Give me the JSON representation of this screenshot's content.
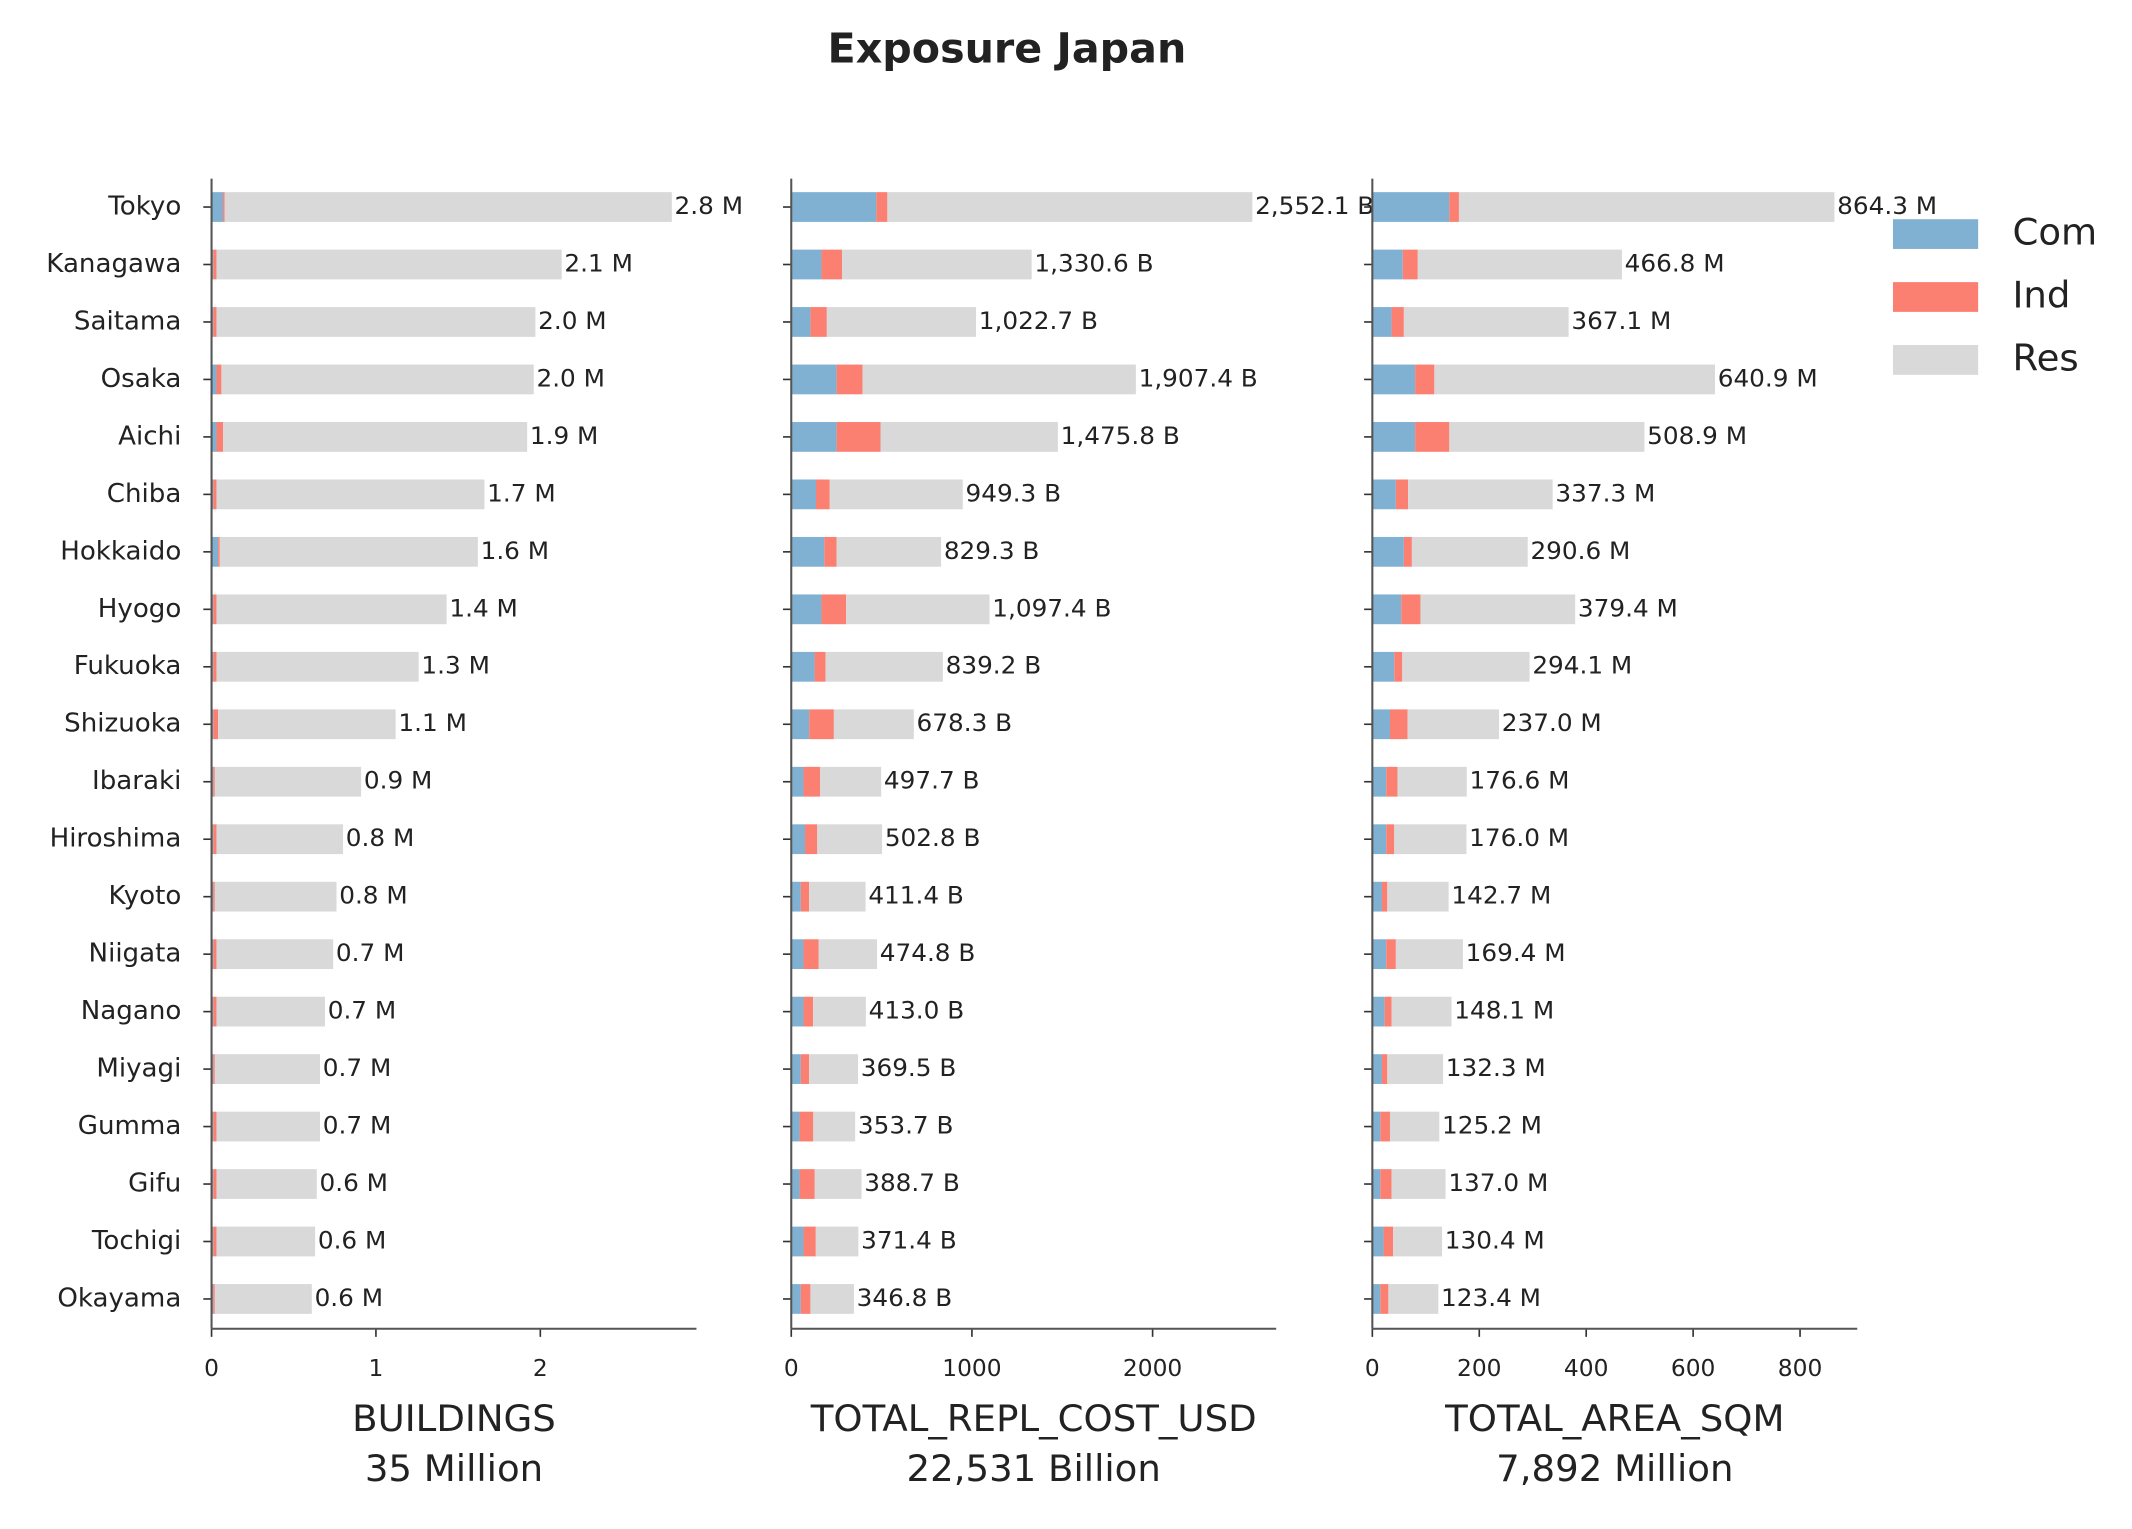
{
  "chart_data": {
    "type": "bar",
    "orientation": "horizontal",
    "stacked": true,
    "title": "Exposure Japan",
    "categories": [
      "Tokyo",
      "Kanagawa",
      "Saitama",
      "Osaka",
      "Aichi",
      "Chiba",
      "Hokkaido",
      "Hyogo",
      "Fukuoka",
      "Shizuoka",
      "Ibaraki",
      "Hiroshima",
      "Kyoto",
      "Niigata",
      "Nagano",
      "Miyagi",
      "Gumma",
      "Gifu",
      "Tochigi",
      "Okayama"
    ],
    "series": [
      {
        "name": "Com",
        "color": "#80b1d3"
      },
      {
        "name": "Ind",
        "color": "#fb8072"
      },
      {
        "name": "Res",
        "color": "#d9d9d9"
      }
    ],
    "legend": "upper right outside",
    "panels": [
      {
        "xlabel": "BUILDINGS",
        "xlabel_total": "35 Million",
        "xlim": [
          0,
          2.95
        ],
        "xticks": [
          0,
          1,
          2
        ],
        "values": [
          [
            0.07,
            0.01,
            0.01,
            0.03,
            0.03,
            0.01,
            0.04,
            0.01,
            0.01,
            0.01,
            0.01,
            0.01,
            0.01,
            0.01,
            0.01,
            0.01,
            0.01,
            0.01,
            0.01,
            0.01
          ],
          [
            0.01,
            0.02,
            0.02,
            0.03,
            0.04,
            0.02,
            0.01,
            0.02,
            0.02,
            0.03,
            0.01,
            0.02,
            0.01,
            0.02,
            0.02,
            0.01,
            0.02,
            0.02,
            0.02,
            0.01
          ],
          [
            2.72,
            2.1,
            1.94,
            1.9,
            1.85,
            1.63,
            1.57,
            1.4,
            1.23,
            1.08,
            0.89,
            0.77,
            0.74,
            0.71,
            0.66,
            0.64,
            0.63,
            0.61,
            0.6,
            0.59
          ]
        ],
        "value_labels": [
          "2.8 M",
          "2.1 M",
          "2.0 M",
          "2.0 M",
          "1.9 M",
          "1.7 M",
          "1.6 M",
          "1.4 M",
          "1.3 M",
          "1.1 M",
          "0.9 M",
          "0.8 M",
          "0.8 M",
          "0.7 M",
          "0.7 M",
          "0.7 M",
          "0.7 M",
          "0.6 M",
          "0.6 M",
          "0.6 M"
        ]
      },
      {
        "xlabel": "TOTAL_REPL_COST_USD",
        "xlabel_total": "22,531 Billion",
        "xlim": [
          0,
          2684
        ],
        "xticks": [
          0,
          1000,
          2000
        ],
        "values": [
          [
            471,
            167,
            106,
            251,
            251,
            137,
            183,
            167,
            129,
            99,
            68,
            76,
            53,
            68,
            68,
            53,
            46,
            46,
            68,
            53
          ],
          [
            61,
            114,
            91,
            144,
            243,
            76,
            68,
            137,
            61,
            137,
            91,
            68,
            46,
            84,
            53,
            46,
            76,
            84,
            68,
            53
          ],
          [
            2020.1,
            1049.6,
            825.7,
            1512.4,
            981.8,
            736.3,
            578.3,
            793.4,
            649.2,
            442.3,
            338.7,
            358.8,
            312.4,
            322.8,
            292.0,
            270.5,
            231.7,
            258.7,
            235.4,
            240.8
          ]
        ],
        "value_labels": [
          "2,552.1 B",
          "1,330.6 B",
          "1,022.7 B",
          "1,907.4 B",
          "1,475.8 B",
          "949.3 B",
          "829.3 B",
          "1,097.4 B",
          "839.2 B",
          "678.3 B",
          "497.7 B",
          "502.8 B",
          "411.4 B",
          "474.8 B",
          "413.0 B",
          "369.5 B",
          "353.7 B",
          "388.7 B",
          "371.4 B",
          "346.8 B"
        ]
      },
      {
        "xlabel": "TOTAL_AREA_SQM",
        "xlabel_total": "7,892 Million",
        "xlim": [
          0,
          907
        ],
        "xticks": [
          0,
          200,
          400,
          600,
          800
        ],
        "values": [
          [
            144,
            57,
            36,
            80,
            80,
            44,
            59,
            54,
            41,
            33,
            26,
            26,
            18,
            26,
            23,
            18,
            15,
            15,
            21,
            15
          ],
          [
            18,
            28,
            23,
            36,
            64,
            23,
            15,
            36,
            15,
            33,
            21,
            15,
            10,
            18,
            13,
            10,
            18,
            21,
            18,
            15
          ],
          [
            702.3,
            381.8,
            308.1,
            524.9,
            364.9,
            270.3,
            216.6,
            289.4,
            238.1,
            171.0,
            129.6,
            135.0,
            114.7,
            125.4,
            112.1,
            104.3,
            92.2,
            101.0,
            91.4,
            93.4
          ]
        ],
        "value_labels": [
          "864.3 M",
          "466.8 M",
          "367.1 M",
          "640.9 M",
          "508.9 M",
          "337.3 M",
          "290.6 M",
          "379.4 M",
          "294.1 M",
          "237.0 M",
          "176.6 M",
          "176.0 M",
          "142.7 M",
          "169.4 M",
          "148.1 M",
          "132.3 M",
          "125.2 M",
          "137.0 M",
          "130.4 M",
          "123.4 M"
        ]
      }
    ]
  }
}
